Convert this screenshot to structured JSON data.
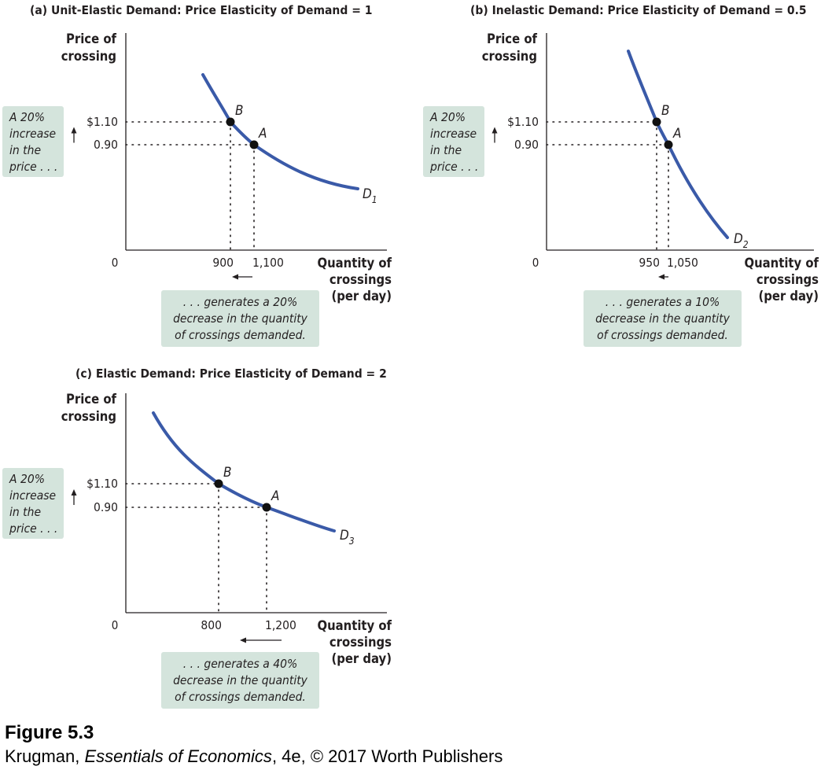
{
  "chart_data": [
    {
      "type": "line",
      "panel_label": "(a)",
      "title": "Unit-Elastic Demand: Price Elasticity of Demand = 1",
      "ylabel": [
        "Price of",
        "crossing"
      ],
      "xlabel": [
        "Quantity of",
        "crossings",
        "(per day)"
      ],
      "origin_label": "0",
      "y_ticks": [
        "$1.10",
        "0.90"
      ],
      "x_ticks": [
        "900",
        "1,100"
      ],
      "curve_label": {
        "letter": "D",
        "subscript": "1"
      },
      "points": [
        {
          "label": "B",
          "quantity": 900,
          "price": 1.1
        },
        {
          "label": "A",
          "quantity": 1100,
          "price": 0.9
        }
      ],
      "price_callout": [
        "A 20%",
        "increase",
        "in the",
        "price . . ."
      ],
      "quantity_callout": [
        ". . . generates a 20%",
        "decrease in the quantity",
        "of crossings demanded."
      ]
    },
    {
      "type": "line",
      "panel_label": "(b)",
      "title": "Inelastic Demand: Price Elasticity of Demand = 0.5",
      "ylabel": [
        "Price of",
        "crossing"
      ],
      "xlabel": [
        "Quantity of",
        "crossings",
        "(per day)"
      ],
      "origin_label": "0",
      "y_ticks": [
        "$1.10",
        "0.90"
      ],
      "x_ticks": [
        "950",
        "1,050"
      ],
      "curve_label": {
        "letter": "D",
        "subscript": "2"
      },
      "points": [
        {
          "label": "B",
          "quantity": 950,
          "price": 1.1
        },
        {
          "label": "A",
          "quantity": 1050,
          "price": 0.9
        }
      ],
      "price_callout": [
        "A 20%",
        "increase",
        "in the",
        "price . . ."
      ],
      "quantity_callout": [
        ". . . generates a 10%",
        "decrease in the quantity",
        "of crossings demanded."
      ]
    },
    {
      "type": "line",
      "panel_label": "(c)",
      "title": "Elastic Demand: Price Elasticity of Demand = 2",
      "ylabel": [
        "Price of",
        "crossing"
      ],
      "xlabel": [
        "Quantity of",
        "crossings",
        "(per day)"
      ],
      "origin_label": "0",
      "y_ticks": [
        "$1.10",
        "0.90"
      ],
      "x_ticks": [
        "800",
        "1,200"
      ],
      "curve_label": {
        "letter": "D",
        "subscript": "3"
      },
      "points": [
        {
          "label": "B",
          "quantity": 800,
          "price": 1.1
        },
        {
          "label": "A",
          "quantity": 1200,
          "price": 0.9
        }
      ],
      "price_callout": [
        "A 20%",
        "increase",
        "in the",
        "price . . ."
      ],
      "quantity_callout": [
        ". . . generates a 40%",
        "decrease in the quantity",
        "of crossings demanded."
      ]
    }
  ],
  "footer": {
    "figure": "Figure 5.3",
    "author": "Krugman, ",
    "book": "Essentials of Economics",
    "rest": ", 4e, © 2017 Worth Publishers"
  },
  "colors": {
    "curve": "#3a5aa8",
    "text": "#231f20",
    "callout_fill": "#d4e4dc",
    "point": "#111111"
  }
}
